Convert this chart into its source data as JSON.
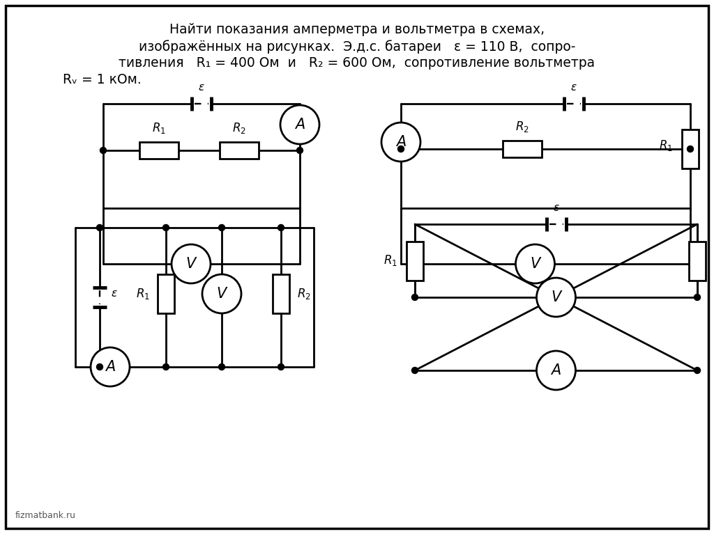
{
  "watermark": "fizmatbank.ru",
  "line1": "Найти показания амперметра и вольтметра в схемах,",
  "line2": "изображённых на рисунках.  Э.д.с. батареи   ε = 110 В,  сопро-",
  "line3": "тивления   R₁ = 400 Ом  и   R₂ = 600 Ом,  сопротивление вольтметра",
  "line4": "Rᵥ = 1 кОм.",
  "bg": "white",
  "cc": "black",
  "lw": 2.0
}
